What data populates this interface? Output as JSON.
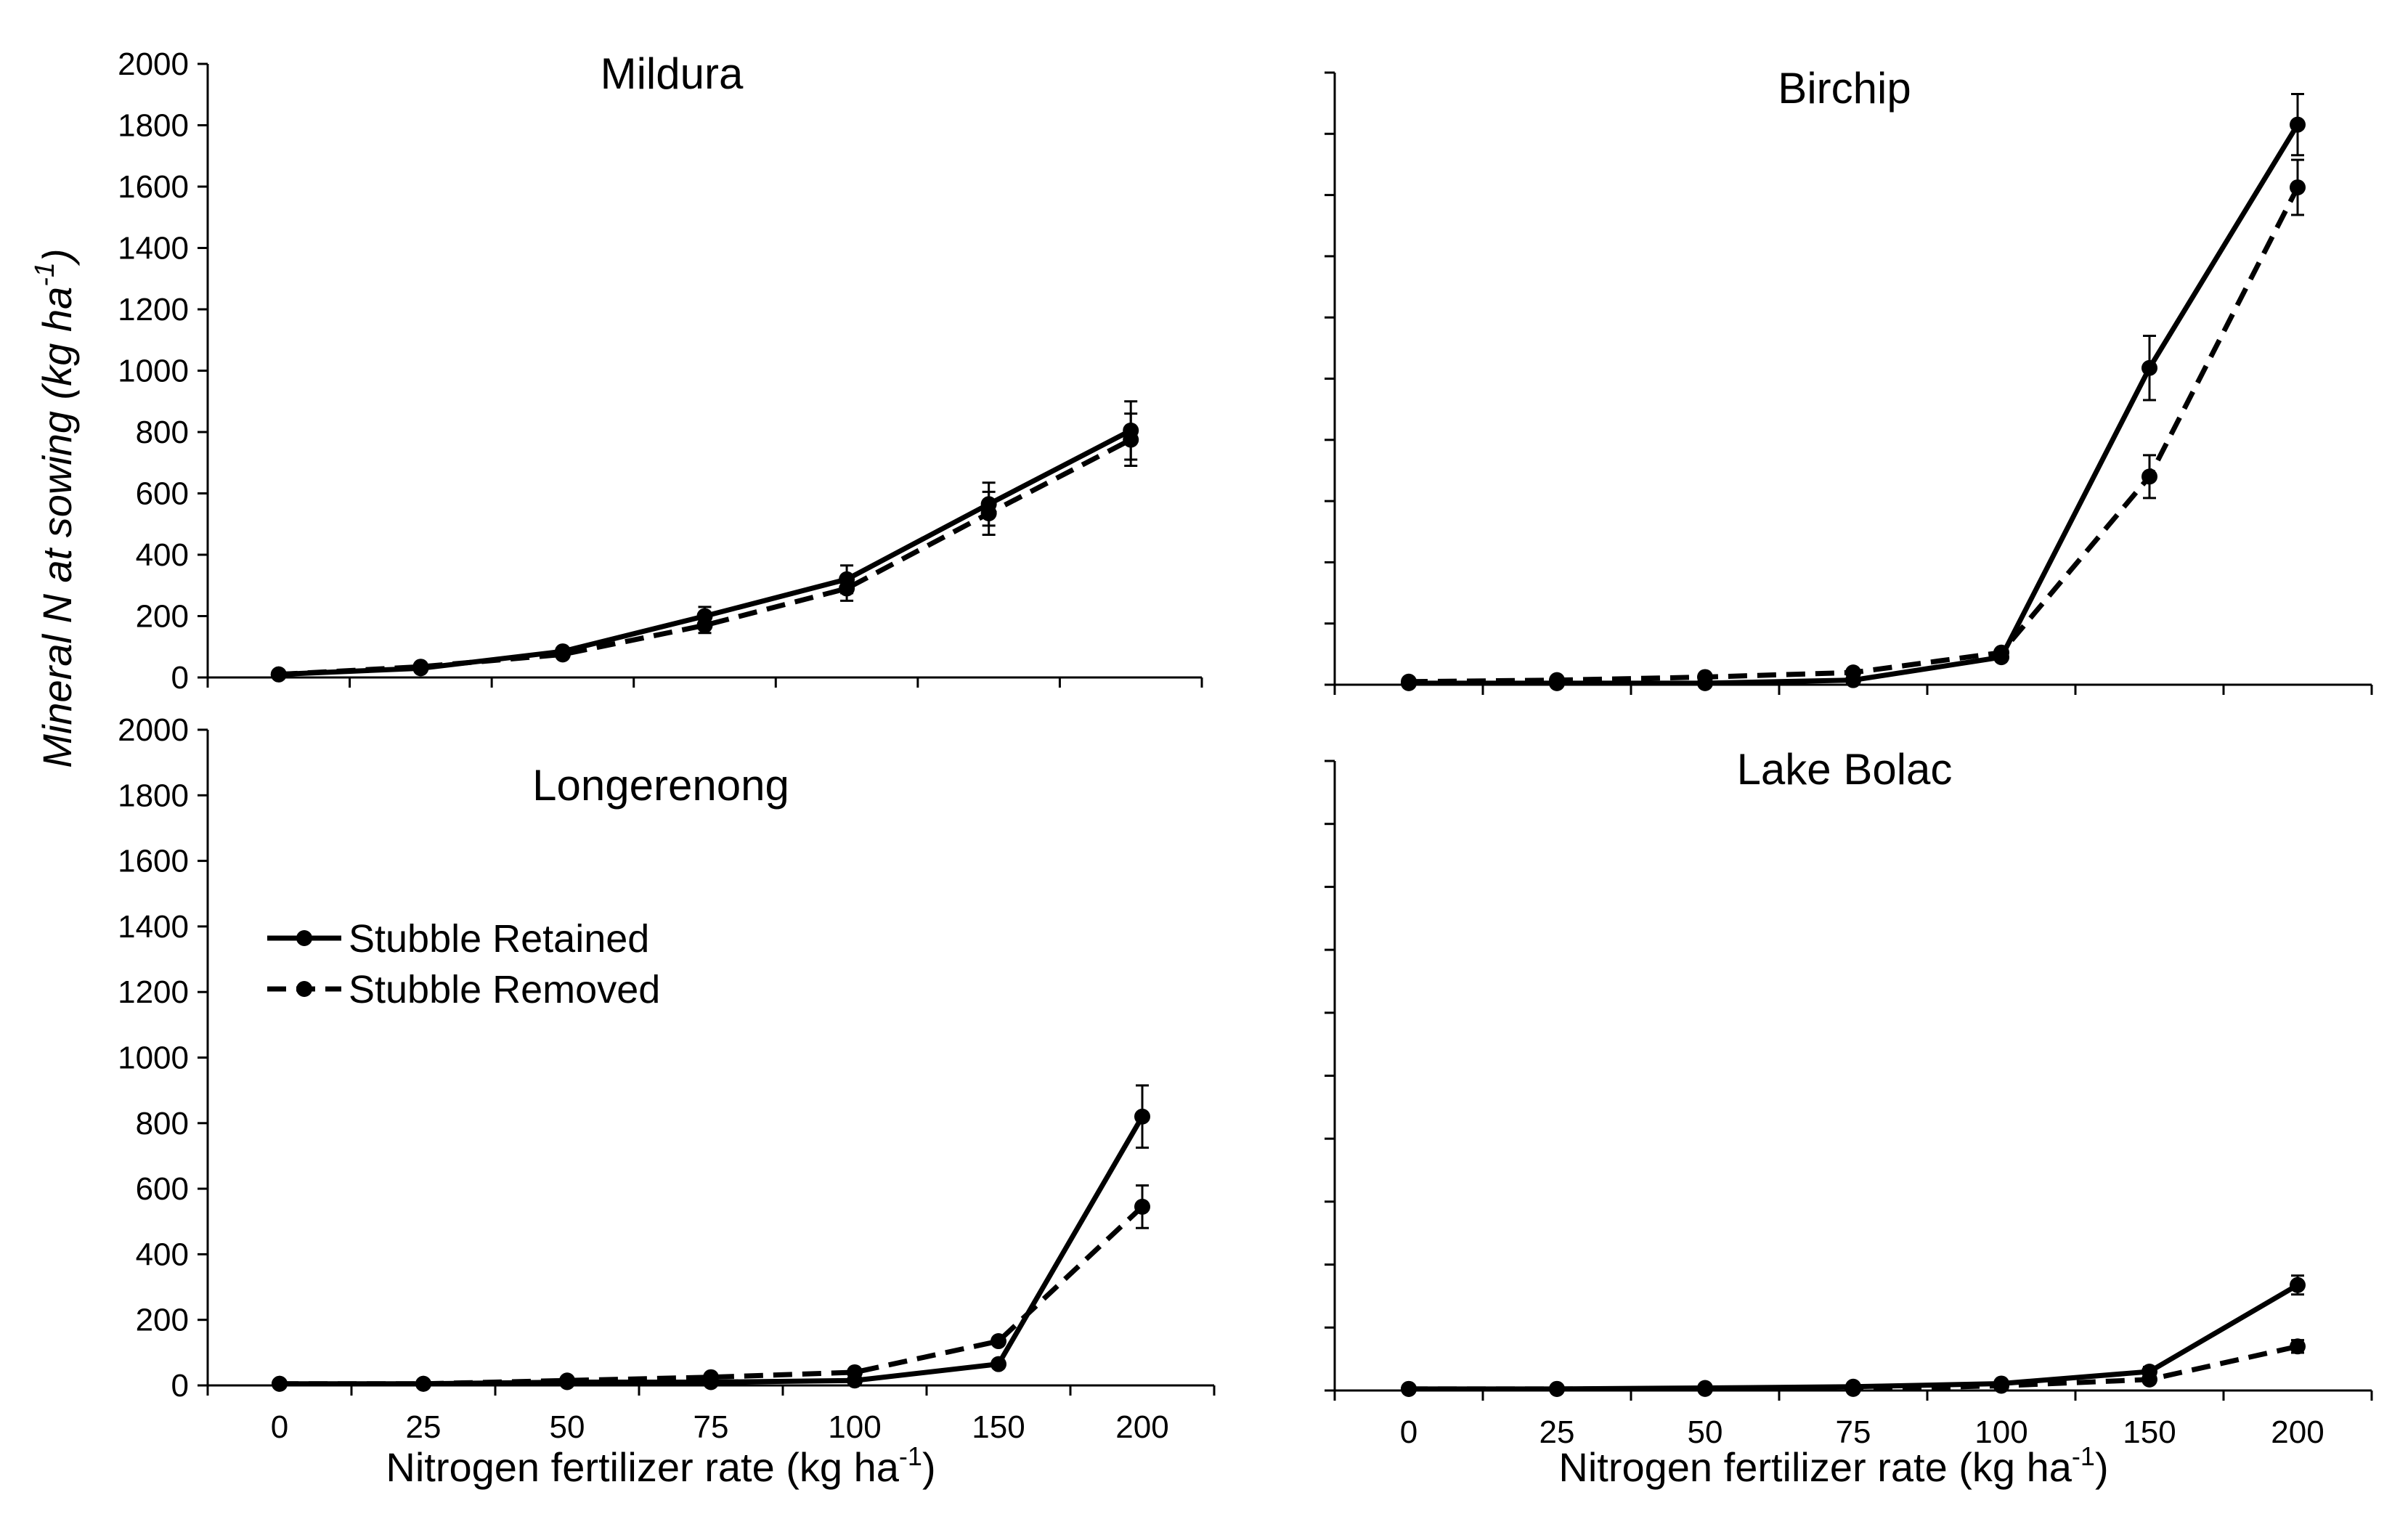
{
  "figure": {
    "ylabel": "Mineral N at sowing (kg ha⁻¹)",
    "ylabel_main": "Mineral N at sowing (kg ha",
    "ylabel_sup": "-1",
    "ylabel_end": ")",
    "xlabel_main": "Nitrogen  fertilizer  rate  (kg  ha",
    "xlabel_sup": "-1",
    "xlabel_end": ")"
  },
  "legend": {
    "retained_label": "Stubble Retained",
    "removed_label": "Stubble Removed"
  },
  "chart_data": [
    {
      "type": "line",
      "title": "Mildura",
      "categories": [
        "0",
        "25",
        "50",
        "75",
        "100",
        "150",
        "200"
      ],
      "ylim": [
        0,
        2000
      ],
      "yticks": [
        "0",
        "200",
        "400",
        "600",
        "800",
        "1000",
        "1200",
        "1400",
        "1600",
        "1800",
        "2000"
      ],
      "xlabel": "",
      "ylabel": "Mineral N at sowing (kg ha-1)",
      "series": [
        {
          "name": "Stubble Retained",
          "style": "solid",
          "values": [
            10,
            30,
            85,
            200,
            320,
            565,
            805
          ],
          "errors": [
            0,
            0,
            0,
            30,
            45,
            70,
            95
          ]
        },
        {
          "name": "Stubble Removed",
          "style": "dashed",
          "values": [
            10,
            35,
            75,
            170,
            290,
            535,
            775
          ],
          "errors": [
            0,
            0,
            0,
            25,
            40,
            70,
            85
          ]
        }
      ]
    },
    {
      "type": "line",
      "title": "Birchip",
      "categories": [
        "0",
        "25",
        "50",
        "75",
        "100",
        "150",
        "200"
      ],
      "ylim": [
        0,
        2000
      ],
      "yticks": [],
      "xlabel": "",
      "series": [
        {
          "name": "Stubble Retained",
          "style": "solid",
          "values": [
            5,
            5,
            5,
            15,
            90,
            1035,
            1830
          ],
          "errors": [
            0,
            0,
            0,
            0,
            0,
            105,
            100
          ]
        },
        {
          "name": "Stubble Removed",
          "style": "dashed",
          "values": [
            10,
            15,
            25,
            40,
            105,
            680,
            1625
          ],
          "errors": [
            0,
            0,
            0,
            0,
            0,
            70,
            90
          ]
        }
      ]
    },
    {
      "type": "line",
      "title": "Longerenong",
      "categories": [
        "0",
        "25",
        "50",
        "75",
        "100",
        "150",
        "200"
      ],
      "ylim": [
        0,
        2000
      ],
      "yticks": [
        "0",
        "200",
        "400",
        "600",
        "800",
        "1000",
        "1200",
        "1400",
        "1600",
        "1800",
        "2000"
      ],
      "xlabel": "Nitrogen fertilizer rate (kg ha-1)",
      "series": [
        {
          "name": "Stubble Retained",
          "style": "solid",
          "values": [
            5,
            5,
            10,
            10,
            15,
            65,
            820
          ],
          "errors": [
            0,
            0,
            0,
            0,
            0,
            0,
            95
          ]
        },
        {
          "name": "Stubble Removed",
          "style": "dashed",
          "values": [
            5,
            5,
            15,
            25,
            40,
            135,
            545
          ],
          "errors": [
            0,
            0,
            0,
            0,
            0,
            0,
            65
          ]
        }
      ]
    },
    {
      "type": "line",
      "title": "Lake Bolac",
      "categories": [
        "0",
        "25",
        "50",
        "75",
        "100",
        "150",
        "200"
      ],
      "ylim": [
        0,
        2000
      ],
      "yticks": [],
      "xlabel": "Nitrogen fertilizer rate (kg ha-1)",
      "series": [
        {
          "name": "Stubble Retained",
          "style": "solid",
          "values": [
            5,
            5,
            8,
            12,
            22,
            60,
            335
          ],
          "errors": [
            0,
            0,
            0,
            0,
            0,
            15,
            30
          ]
        },
        {
          "name": "Stubble Removed",
          "style": "dashed",
          "values": [
            5,
            5,
            5,
            5,
            15,
            35,
            140
          ],
          "errors": [
            0,
            0,
            0,
            0,
            0,
            0,
            20
          ]
        }
      ]
    }
  ]
}
